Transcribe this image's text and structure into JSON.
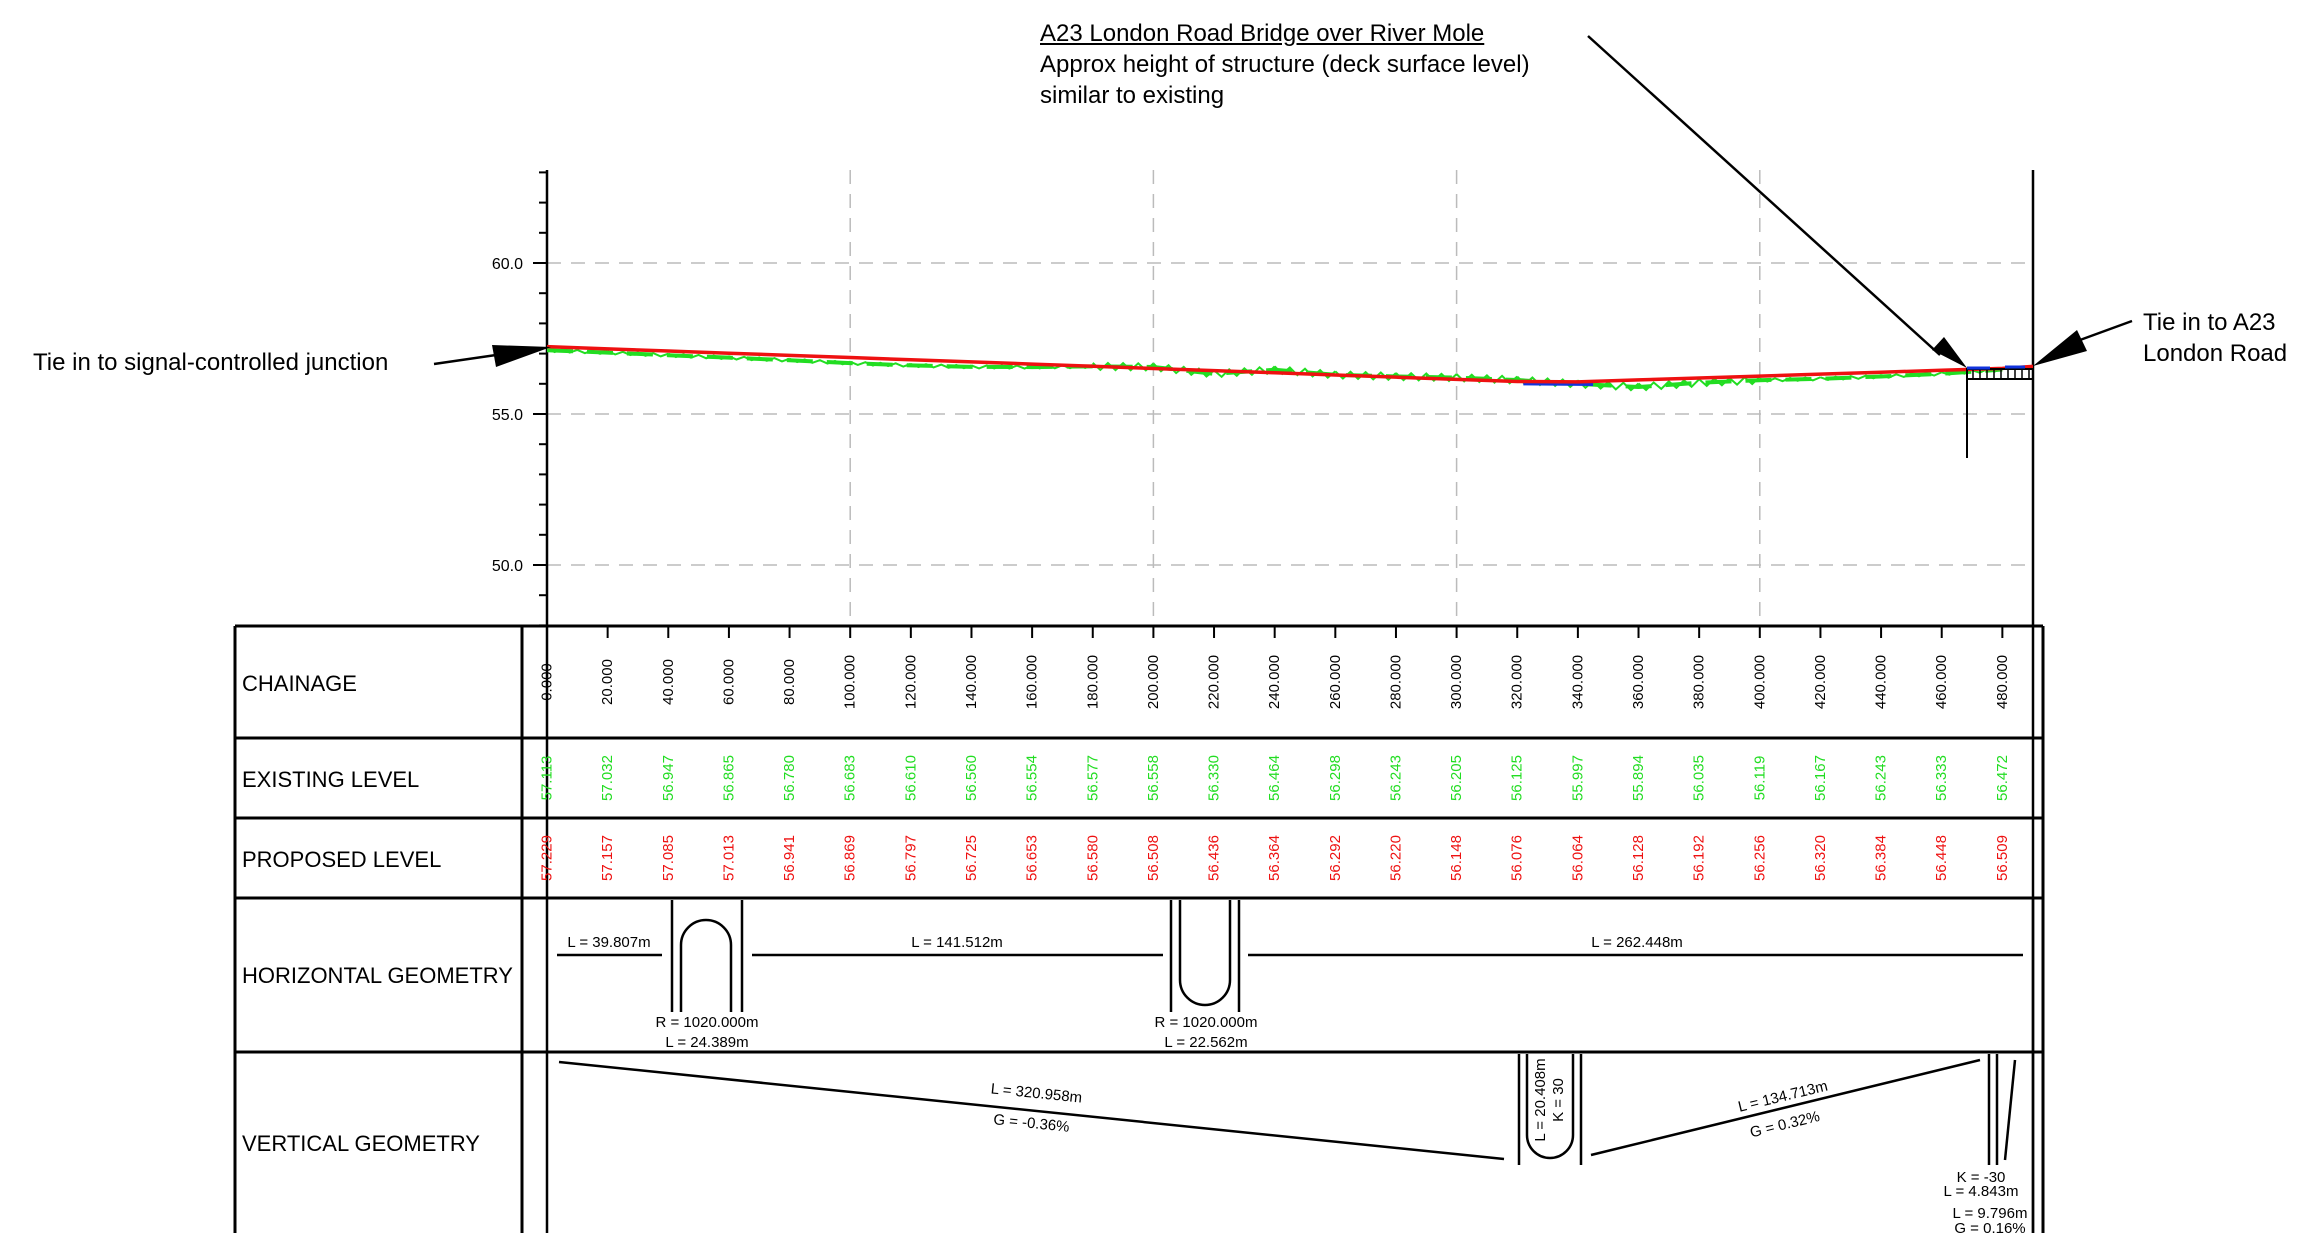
{
  "annotations": {
    "bridge_title": "A23 London Road Bridge over River Mole",
    "bridge_line2": "Approx height of structure (deck surface level)",
    "bridge_line3": "similar to existing",
    "left_tie": "Tie in to signal-controlled junction",
    "right_tie_line1": "Tie in to A23",
    "right_tie_line2": "London Road"
  },
  "colors": {
    "existing": "#22dd22",
    "proposed": "#ee1111",
    "water": "#1133dd",
    "grid": "#bbbbbb",
    "ink": "#000000"
  },
  "chart_data": {
    "type": "line",
    "ylim": [
      48.0,
      63.0
    ],
    "y_ticks": [
      "50.0",
      "55.0",
      "60.0"
    ],
    "x_range": [
      0,
      490
    ],
    "series": [
      {
        "name": "EXISTING LEVEL",
        "color": "#22dd22",
        "style": "dashed",
        "x": [
          0,
          20,
          40,
          60,
          80,
          100,
          120,
          140,
          160,
          180,
          200,
          220,
          240,
          260,
          280,
          300,
          320,
          340,
          360,
          380,
          400,
          420,
          440,
          460,
          480
        ],
        "values": [
          57.113,
          57.032,
          56.947,
          56.865,
          56.78,
          56.683,
          56.61,
          56.56,
          56.554,
          56.577,
          56.558,
          56.33,
          56.464,
          56.298,
          56.243,
          56.205,
          56.125,
          55.997,
          55.894,
          56.035,
          56.119,
          56.167,
          56.243,
          56.333,
          56.472
        ]
      },
      {
        "name": "PROPOSED LEVEL",
        "color": "#ee1111",
        "style": "solid",
        "x": [
          0,
          20,
          40,
          60,
          80,
          100,
          120,
          140,
          160,
          180,
          200,
          220,
          240,
          260,
          280,
          300,
          320,
          340,
          360,
          380,
          400,
          420,
          440,
          460,
          480
        ],
        "values": [
          57.229,
          57.157,
          57.085,
          57.013,
          56.941,
          56.869,
          56.797,
          56.725,
          56.653,
          56.58,
          56.508,
          56.436,
          56.364,
          56.292,
          56.22,
          56.148,
          56.076,
          56.064,
          56.128,
          56.192,
          56.256,
          56.32,
          56.384,
          56.448,
          56.509
        ]
      }
    ]
  },
  "table": {
    "row_labels": [
      "CHAINAGE",
      "EXISTING LEVEL",
      "PROPOSED LEVEL",
      "HORIZONTAL GEOMETRY",
      "VERTICAL GEOMETRY"
    ],
    "chainage": [
      "0.000",
      "20.000",
      "40.000",
      "60.000",
      "80.000",
      "100.000",
      "120.000",
      "140.000",
      "160.000",
      "180.000",
      "200.000",
      "220.000",
      "240.000",
      "260.000",
      "280.000",
      "300.000",
      "320.000",
      "340.000",
      "360.000",
      "380.000",
      "400.000",
      "420.000",
      "440.000",
      "460.000",
      "480.000"
    ],
    "existing": [
      "57.113",
      "57.032",
      "56.947",
      "56.865",
      "56.780",
      "56.683",
      "56.610",
      "56.560",
      "56.554",
      "56.577",
      "56.558",
      "56.330",
      "56.464",
      "56.298",
      "56.243",
      "56.205",
      "56.125",
      "55.997",
      "55.894",
      "56.035",
      "56.119",
      "56.167",
      "56.243",
      "56.333",
      "56.472"
    ],
    "proposed": [
      "57.229",
      "57.157",
      "57.085",
      "57.013",
      "56.941",
      "56.869",
      "56.797",
      "56.725",
      "56.653",
      "56.580",
      "56.508",
      "56.436",
      "56.364",
      "56.292",
      "56.220",
      "56.148",
      "56.076",
      "56.064",
      "56.128",
      "56.192",
      "56.256",
      "56.320",
      "56.384",
      "56.448",
      "56.509"
    ]
  },
  "horizontal_geometry": {
    "seg1": "L = 39.807m",
    "curve1_r": "R = 1020.000m",
    "curve1_l": "L = 24.389m",
    "seg2": "L = 141.512m",
    "curve2_r": "R = 1020.000m",
    "curve2_l": "L = 22.562m",
    "seg3": "L = 262.448m"
  },
  "vertical_geometry": {
    "grade1_l": "L = 320.958m",
    "grade1_g": "G = -0.36%",
    "curve1_l": "L = 20.408m",
    "curve1_k": "K = 30",
    "grade2_l": "L = 134.713m",
    "grade2_g": "G = 0.32%",
    "curve2_k": "K = -30",
    "curve2_l": "L = 4.843m",
    "grade3_l": "L = 9.796m",
    "grade3_g": "G = 0.16%"
  }
}
